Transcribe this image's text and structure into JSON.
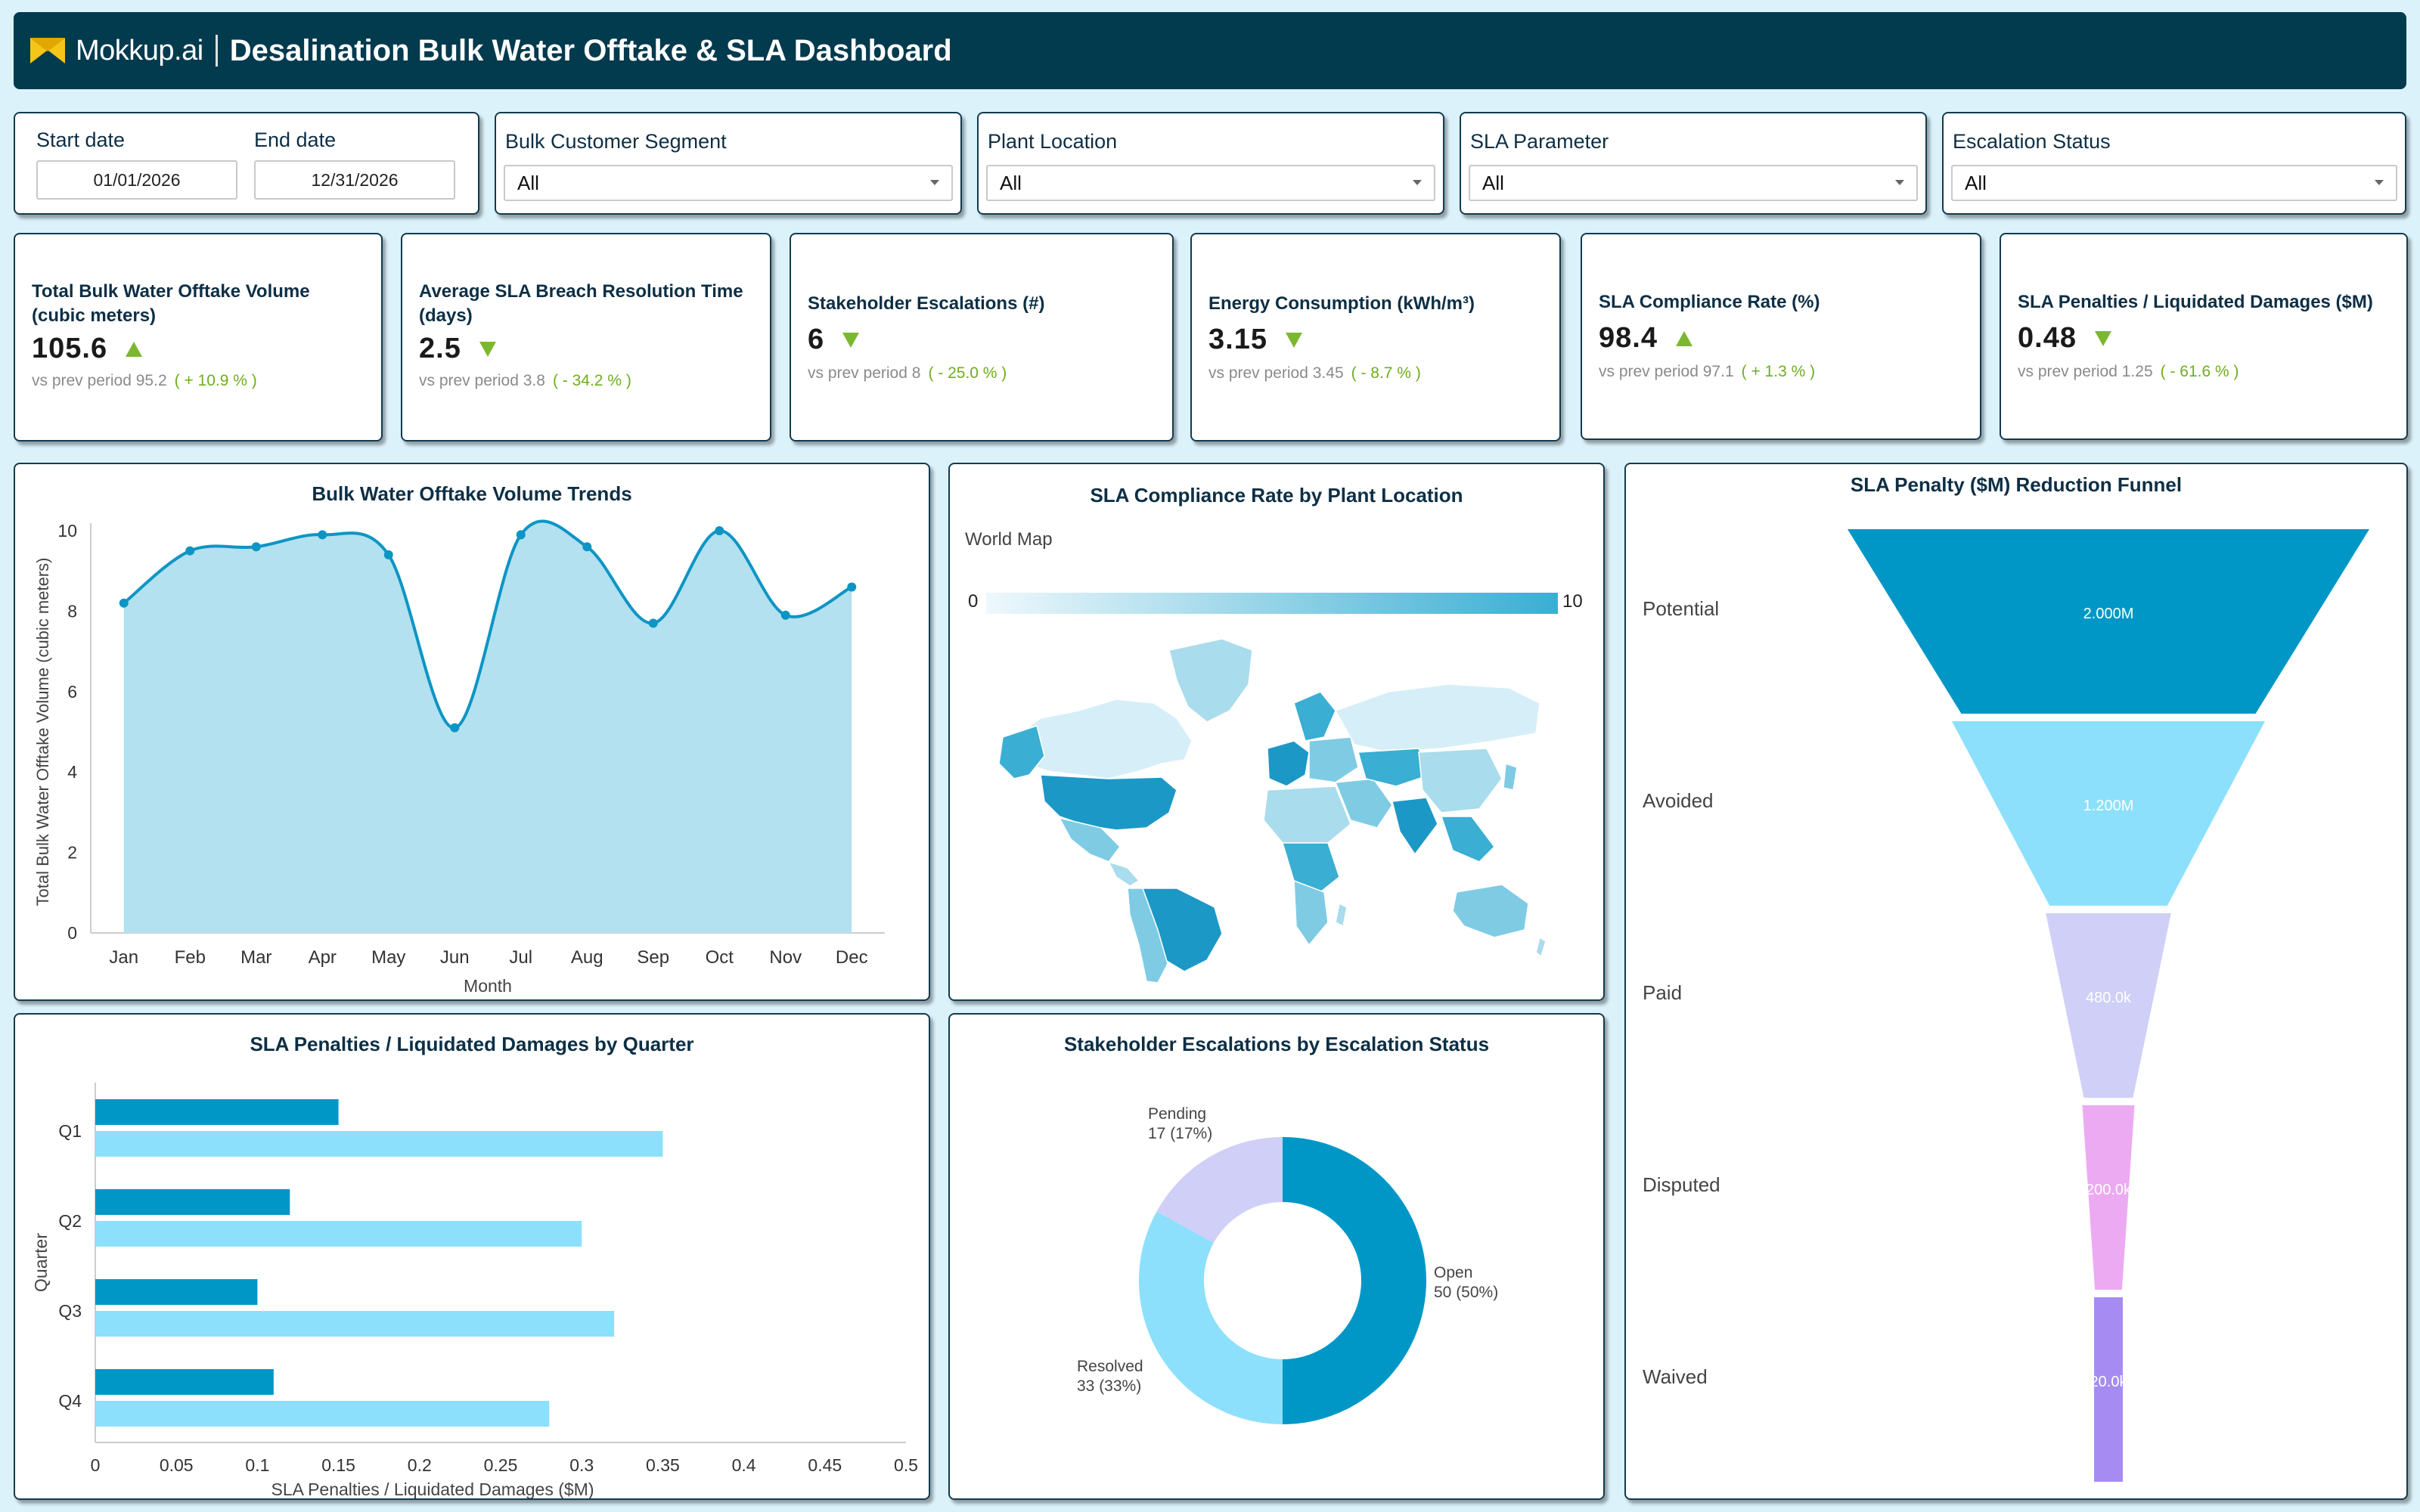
{
  "header": {
    "brand": "Mokkup.ai",
    "title": "Desalination Bulk Water Offtake & SLA Dashboard",
    "brand_color": "#f5c518"
  },
  "filters": {
    "start_label": "Start date",
    "start_value": "01/01/2026",
    "end_label": "End date",
    "end_value": "12/31/2026",
    "dropdowns": [
      {
        "label": "Bulk Customer Segment",
        "value": "All"
      },
      {
        "label": "Plant Location",
        "value": "All"
      },
      {
        "label": "SLA Parameter",
        "value": "All"
      },
      {
        "label": "Escalation Status",
        "value": "All"
      }
    ]
  },
  "kpis": [
    {
      "title": "Total Bulk Water Offtake Volume (cubic meters)",
      "value": "105.6",
      "trend": "up",
      "sub_label": "vs prev period",
      "prev": "95.2",
      "change": "( + 10.9 % )"
    },
    {
      "title": "Average SLA Breach Resolution Time (days)",
      "value": "2.5",
      "trend": "down",
      "sub_label": "vs prev period",
      "prev": "3.8",
      "change": "( - 34.2 % )"
    },
    {
      "title": "Stakeholder Escalations (#)",
      "value": "6",
      "trend": "down",
      "sub_label": "vs prev period",
      "prev": "8",
      "change": "( - 25.0 % )"
    },
    {
      "title": "Energy Consumption (kWh/m³)",
      "value": "3.15",
      "trend": "down",
      "sub_label": "vs prev period",
      "prev": "3.45",
      "change": "( - 8.7 % )"
    },
    {
      "title": "SLA Compliance Rate (%)",
      "value": "98.4",
      "trend": "up",
      "sub_label": "vs prev period",
      "prev": "97.1",
      "change": "( + 1.3 % )"
    },
    {
      "title": "SLA Penalties / Liquidated Damages ($M)",
      "value": "0.48",
      "trend": "down",
      "sub_label": "vs prev period",
      "prev": "1.25",
      "change": "( - 61.6 % )"
    }
  ],
  "panels": {
    "volume_title": "Bulk Water Offtake Volume Trends",
    "map_title": "SLA Compliance Rate by Plant Location",
    "map_label": "World Map",
    "map_scale_min": "0",
    "map_scale_max": "10",
    "funnel_title": "SLA Penalty ($M) Reduction Funnel",
    "quarter_title": "SLA Penalties / Liquidated Damages by Quarter",
    "donut_title": "Stakeholder Escalations by Escalation Status"
  },
  "chart_data": [
    {
      "type": "area",
      "title": "Bulk Water Offtake Volume Trends",
      "xlabel": "Month",
      "ylabel": "Total Bulk Water Offtake Volume (cubic meters)",
      "categories": [
        "Jan",
        "Feb",
        "Mar",
        "Apr",
        "May",
        "Jun",
        "Jul",
        "Aug",
        "Sep",
        "Oct",
        "Nov",
        "Dec"
      ],
      "values": [
        8.2,
        9.5,
        9.6,
        9.9,
        9.4,
        5.1,
        9.9,
        9.6,
        7.7,
        10.0,
        7.9,
        8.6
      ],
      "ylim": [
        0,
        10
      ],
      "yticks": [
        0,
        2,
        4,
        6,
        8,
        10
      ],
      "color": "#0c95c4",
      "fill": "#b3e1f0"
    },
    {
      "type": "bar",
      "orientation": "horizontal",
      "title": "SLA Penalties / Liquidated Damages by Quarter",
      "xlabel": "SLA Penalties / Liquidated Damages ($M)",
      "ylabel": "Quarter",
      "categories": [
        "Q1",
        "Q2",
        "Q3",
        "Q4"
      ],
      "series": [
        {
          "values": [
            0.15,
            0.12,
            0.1,
            0.11
          ],
          "color": "#0097c7"
        },
        {
          "values": [
            0.35,
            0.3,
            0.32,
            0.28
          ],
          "color": "#8de0fb"
        }
      ],
      "xlim": [
        0,
        0.5
      ],
      "xticks": [
        "0",
        "0.05",
        "0.1",
        "0.15",
        "0.2",
        "0.25",
        "0.3",
        "0.35",
        "0.4",
        "0.45",
        "0.5"
      ]
    },
    {
      "type": "pie",
      "variant": "donut",
      "title": "Stakeholder Escalations by Escalation Status",
      "slices": [
        {
          "name": "Open",
          "value": 50,
          "label": "50 (50%)",
          "color": "#0097c7"
        },
        {
          "name": "Resolved",
          "value": 33,
          "label": "33 (33%)",
          "color": "#8de0fb"
        },
        {
          "name": "Pending",
          "value": 17,
          "label": "17 (17%)",
          "color": "#cfcff8"
        }
      ]
    },
    {
      "type": "funnel",
      "title": "SLA Penalty ($M) Reduction Funnel",
      "stages": [
        {
          "name": "Potential",
          "value": 2000000,
          "label": "2.000M",
          "color": "#0097c7"
        },
        {
          "name": "Avoided",
          "value": 1200000,
          "label": "1.200M",
          "color": "#8de0fb"
        },
        {
          "name": "Paid",
          "value": 480000,
          "label": "480.0k",
          "color": "#cfcff8"
        },
        {
          "name": "Disputed",
          "value": 200000,
          "label": "200.0k",
          "color": "#ecaaf3"
        },
        {
          "name": "Waived",
          "value": 20000,
          "label": "20.0k",
          "color": "#a68cf2"
        }
      ]
    }
  ]
}
